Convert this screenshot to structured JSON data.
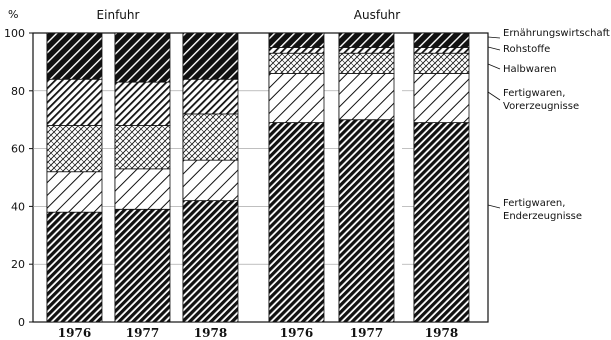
{
  "chart_data": {
    "type": "bar",
    "stacked": true,
    "y_unit": "%",
    "ylim": [
      0,
      100
    ],
    "yticks": [
      0,
      20,
      40,
      60,
      80,
      100
    ],
    "groups": [
      {
        "label": "Einfuhr",
        "categories": [
          "1976",
          "1977",
          "1978"
        ]
      },
      {
        "label": "Ausfuhr",
        "categories": [
          "1976",
          "1977",
          "1978"
        ]
      }
    ],
    "categories": [
      "1976",
      "1977",
      "1978",
      "1976",
      "1977",
      "1978"
    ],
    "series": [
      {
        "name": "Fertigwaren, Enderzeugnisse",
        "values": [
          38,
          39,
          42,
          69,
          70,
          69
        ]
      },
      {
        "name": "Fertigwaren, Vorerzeugnisse",
        "values": [
          14,
          14,
          14,
          17,
          16,
          17
        ]
      },
      {
        "name": "Halbwaren",
        "values": [
          16,
          15,
          16,
          7,
          7,
          7
        ]
      },
      {
        "name": "Rohstoffe",
        "values": [
          16,
          15,
          12,
          2,
          2,
          2
        ]
      },
      {
        "name": "Ernährungswirtschaft",
        "values": [
          16,
          17,
          16,
          5,
          5,
          5
        ]
      }
    ],
    "legend_position": "right",
    "grid": false
  }
}
